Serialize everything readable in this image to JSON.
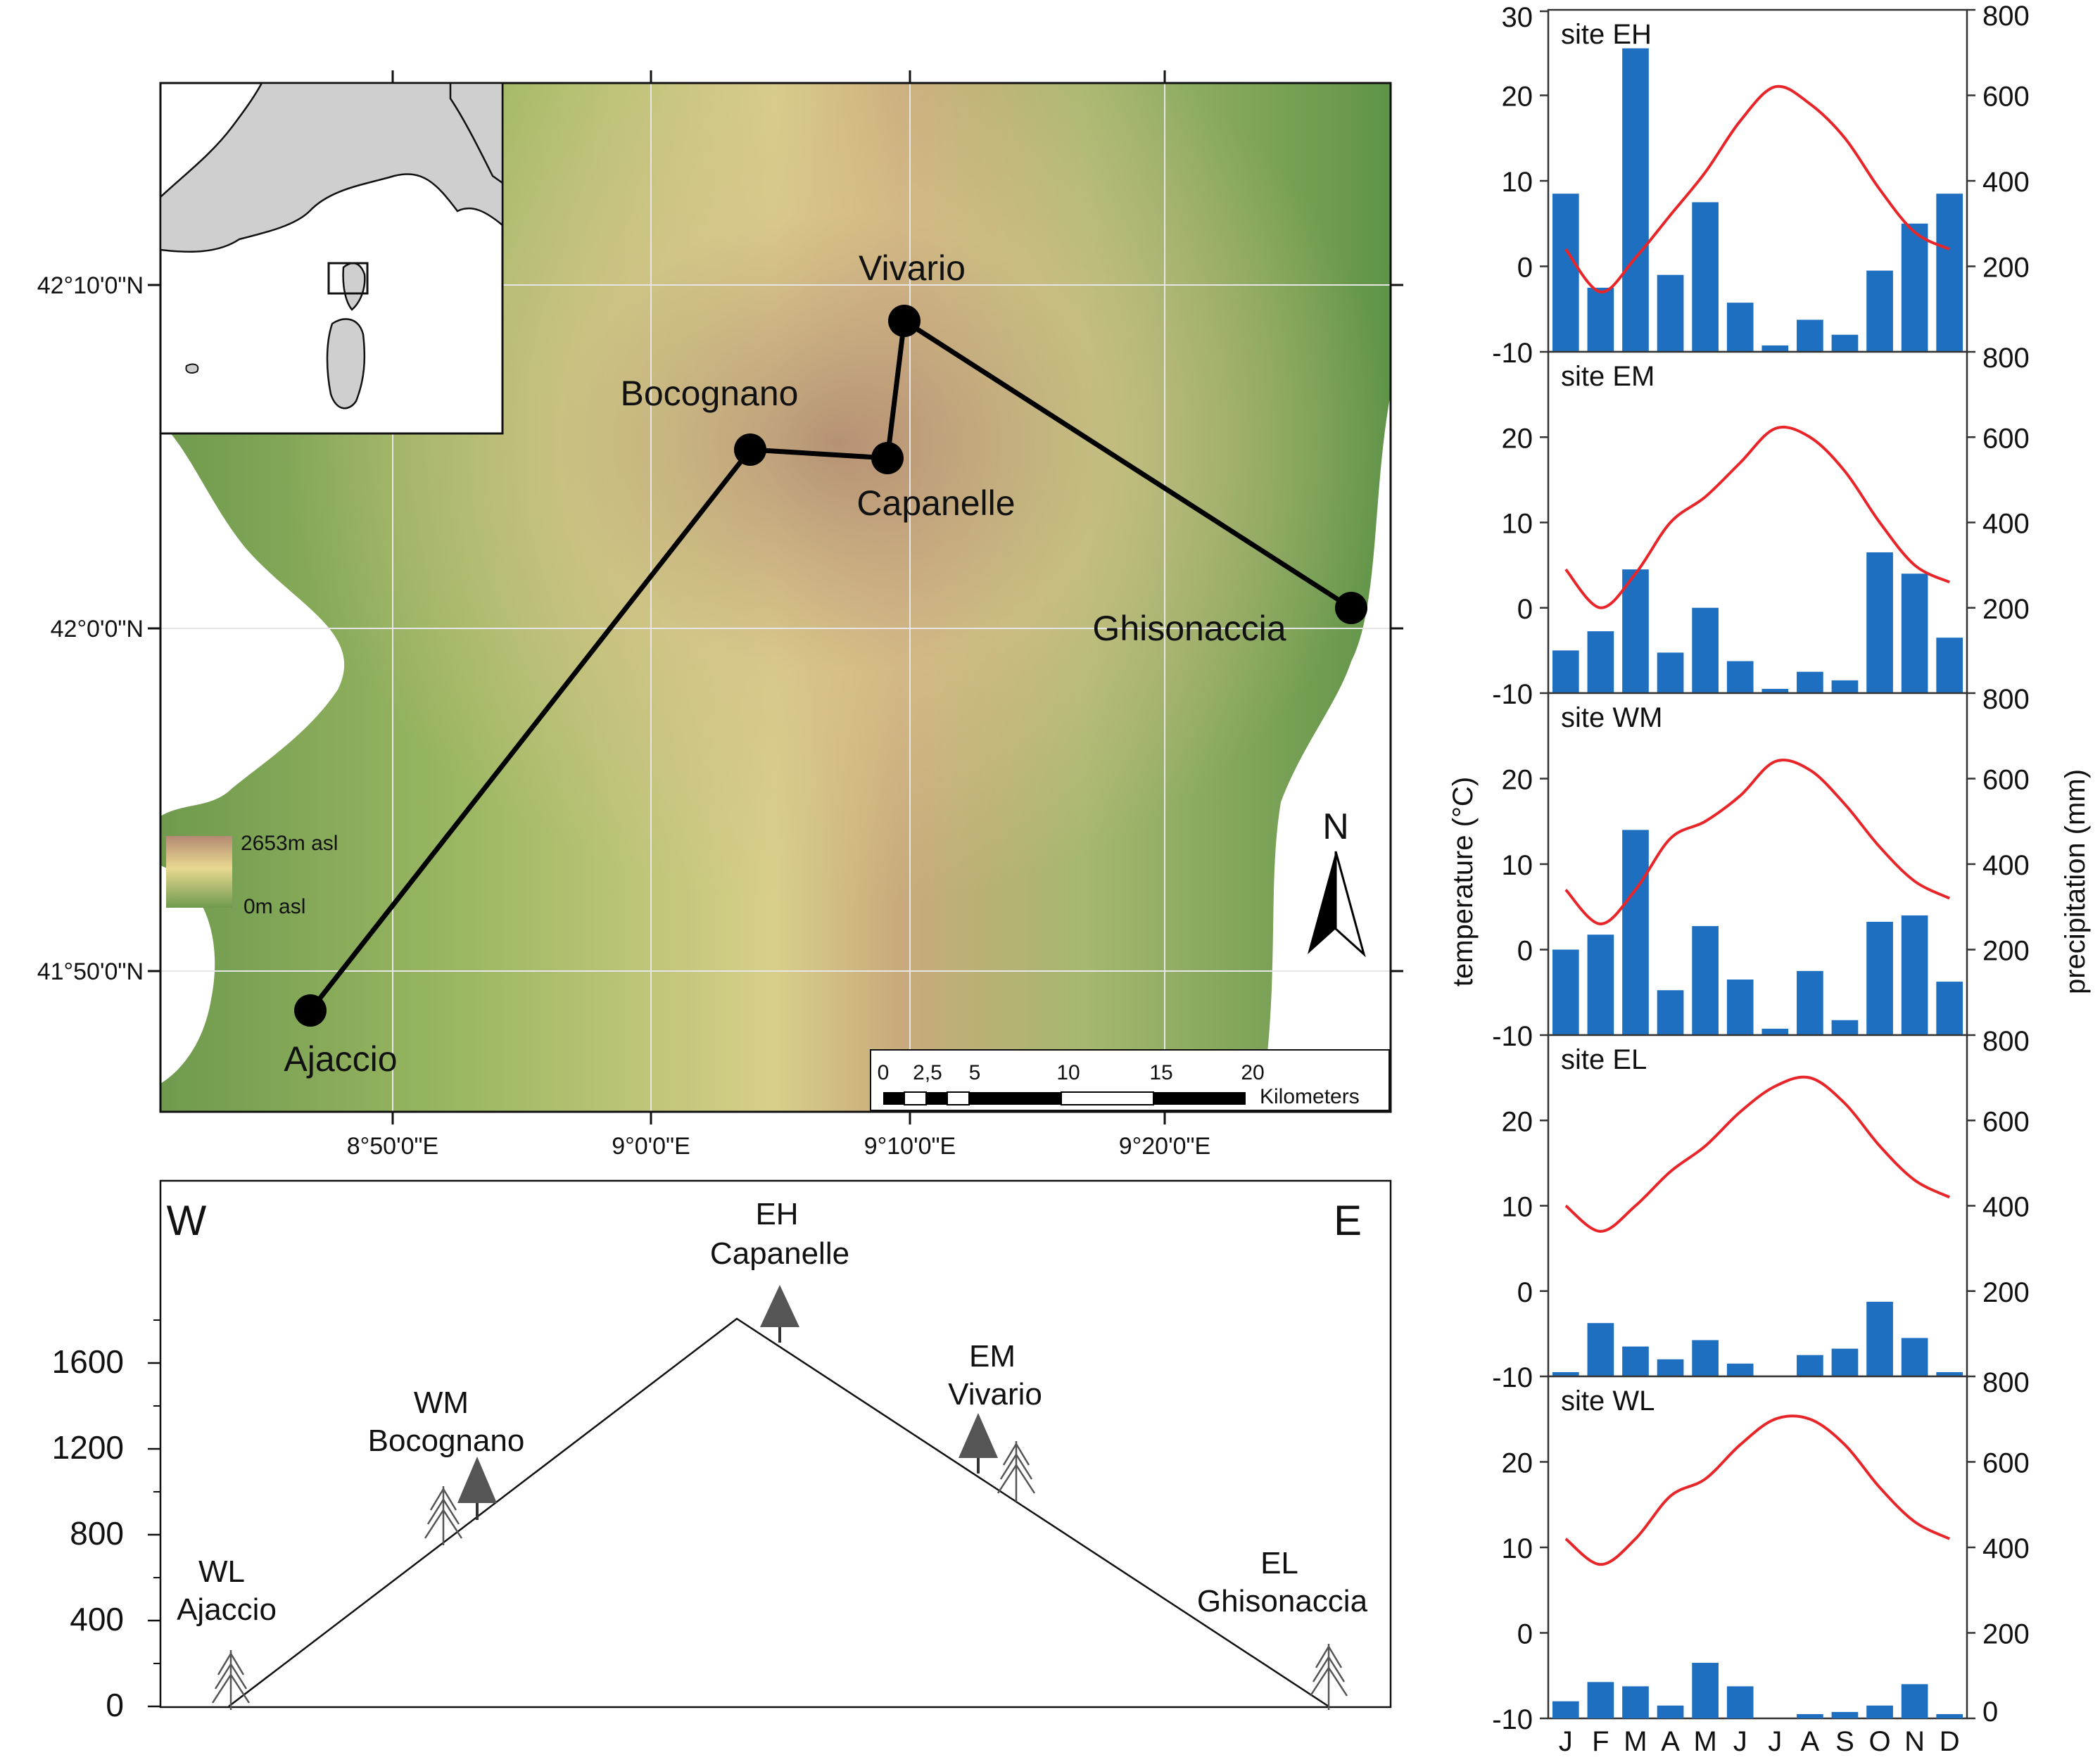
{
  "map": {
    "lat_labels": [
      "42°10'0\"N",
      "42°0'0\"N",
      "41°50'0\"N"
    ],
    "lon_labels": [
      "8°50'0\"E",
      "9°0'0\"E",
      "9°10'0\"E",
      "9°20'0\"E"
    ],
    "towns": [
      "Vivario",
      "Bocognano",
      "Capanelle",
      "Ghisonaccia",
      "Ajaccio"
    ],
    "legend": {
      "high": "2653m asl",
      "low": "0m asl"
    },
    "north": "N",
    "scale": {
      "ticks": [
        "0",
        "2,5",
        "5",
        "10",
        "15",
        "20"
      ],
      "unit": "Kilometers"
    }
  },
  "profile": {
    "west": "W",
    "east": "E",
    "y_ticks": [
      "0",
      "400",
      "800",
      "1200",
      "1600"
    ],
    "sites": [
      {
        "code": "WL",
        "name": "Ajaccio"
      },
      {
        "code": "WM",
        "name": "Bocognano"
      },
      {
        "code": "EH",
        "name": "Capanelle"
      },
      {
        "code": "EM",
        "name": "Vivario"
      },
      {
        "code": "EL",
        "name": "Ghisonaccia"
      }
    ]
  },
  "climate": {
    "y_left_label": "temperature (°C)",
    "y_right_label": "precipitation (mm)",
    "left_ticks": [
      "-10",
      "0",
      "10",
      "20"
    ],
    "left_top": "30",
    "right_ticks": [
      "0",
      "200",
      "400",
      "600",
      "800"
    ],
    "months": [
      "J",
      "F",
      "M",
      "A",
      "M",
      "J",
      "J",
      "A",
      "S",
      "O",
      "N",
      "D"
    ]
  },
  "chart_data": [
    {
      "type": "bar",
      "title": "site EH",
      "categories": [
        "J",
        "F",
        "M",
        "A",
        "M",
        "J",
        "J",
        "A",
        "S",
        "O",
        "N",
        "D"
      ],
      "precip": [
        370,
        150,
        710,
        180,
        350,
        115,
        15,
        75,
        40,
        190,
        300,
        370
      ],
      "temp": [
        2,
        -3,
        1,
        6,
        11,
        17,
        21,
        19,
        15,
        9,
        4,
        2
      ]
    },
    {
      "type": "bar",
      "title": "site EM",
      "categories": [
        "J",
        "F",
        "M",
        "A",
        "M",
        "J",
        "J",
        "A",
        "S",
        "O",
        "N",
        "D"
      ],
      "precip": [
        100,
        145,
        290,
        95,
        200,
        75,
        10,
        50,
        30,
        330,
        280,
        130
      ],
      "temp": [
        4.5,
        0,
        4,
        10,
        13,
        17,
        21,
        20,
        16,
        10,
        5,
        3
      ]
    },
    {
      "type": "bar",
      "title": "site WM",
      "categories": [
        "J",
        "F",
        "M",
        "A",
        "M",
        "J",
        "J",
        "A",
        "S",
        "O",
        "N",
        "D"
      ],
      "precip": [
        200,
        235,
        480,
        105,
        255,
        130,
        15,
        150,
        35,
        265,
        280,
        125
      ],
      "temp": [
        7,
        3,
        7,
        13,
        15,
        18,
        22,
        21,
        17,
        12,
        8,
        6
      ]
    },
    {
      "type": "bar",
      "title": "site EL",
      "categories": [
        "J",
        "F",
        "M",
        "A",
        "M",
        "J",
        "J",
        "A",
        "S",
        "O",
        "N",
        "D"
      ],
      "precip": [
        10,
        125,
        70,
        40,
        85,
        30,
        0,
        50,
        65,
        175,
        90,
        10
      ],
      "temp": [
        10,
        7,
        10,
        14,
        17,
        21,
        24,
        25,
        22,
        17,
        13,
        11
      ]
    },
    {
      "type": "bar",
      "title": "site WL",
      "categories": [
        "J",
        "F",
        "M",
        "A",
        "M",
        "J",
        "J",
        "A",
        "S",
        "O",
        "N",
        "D"
      ],
      "precip": [
        40,
        85,
        75,
        30,
        130,
        75,
        0,
        10,
        15,
        30,
        80,
        10
      ],
      "temp": [
        11,
        8,
        11,
        16,
        18,
        22,
        25,
        25,
        22,
        17,
        13,
        11
      ]
    }
  ]
}
